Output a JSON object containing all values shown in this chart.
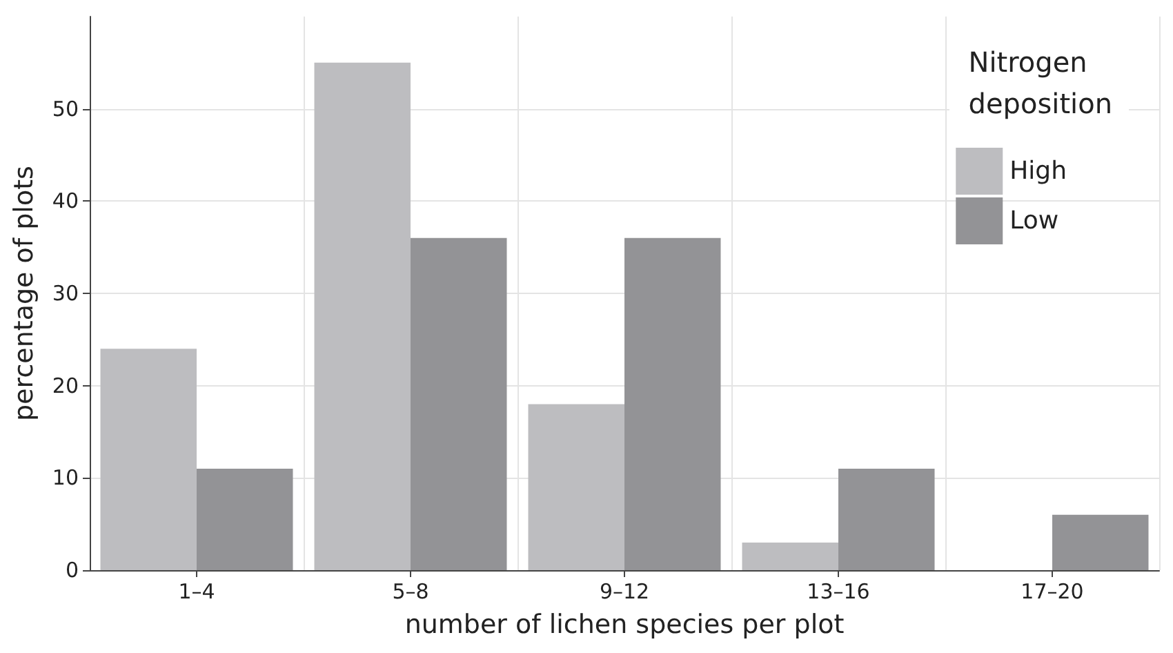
{
  "chart_data": {
    "type": "bar",
    "xlabel": "number of lichen species per plot",
    "ylabel": "percentage of plots",
    "legend_title": "Nitrogen deposition",
    "categories": [
      "1–4",
      "5–8",
      "9–12",
      "13–16",
      "17–20"
    ],
    "series": [
      {
        "name": "High",
        "color": "#bdbdc0",
        "values": [
          24,
          55,
          18,
          3,
          0
        ]
      },
      {
        "name": "Low",
        "color": "#939396",
        "values": [
          11,
          36,
          36,
          11,
          6
        ]
      }
    ],
    "ylim": [
      0,
      60
    ],
    "yticks": [
      0,
      10,
      20,
      30,
      40,
      50
    ],
    "grid": true,
    "legend": "top right"
  }
}
